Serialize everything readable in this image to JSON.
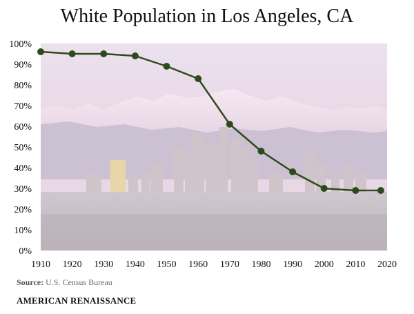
{
  "chart_data": {
    "type": "line",
    "title": "White Population in Los Angeles, CA",
    "xlabel": "",
    "ylabel": "",
    "x": [
      1910,
      1920,
      1930,
      1940,
      1950,
      1960,
      1970,
      1980,
      1990,
      2000,
      2010,
      2018
    ],
    "series": [
      {
        "values": [
          96,
          95,
          95,
          94,
          89,
          83,
          61,
          48,
          38,
          30,
          29,
          29
        ]
      }
    ],
    "xlim": [
      1910,
      2020
    ],
    "ylim": [
      0,
      100
    ],
    "xticks": [
      "1910",
      "1920",
      "1930",
      "1940",
      "1950",
      "1960",
      "1970",
      "1980",
      "1990",
      "2000",
      "2010",
      "2020"
    ],
    "yticks": [
      "0%",
      "10%",
      "20%",
      "30%",
      "40%",
      "50%",
      "60%",
      "70%",
      "80%",
      "90%",
      "100%"
    ],
    "grid": false,
    "line_color": "#2e4a1c",
    "marker_color": "#2e4a1c",
    "background": "faded photo of Los Angeles skyline with snow-capped mountains"
  },
  "source": {
    "label": "Source:",
    "text": "U.S. Census Bureau"
  },
  "brand": "AMERICAN RENAISSANCE"
}
